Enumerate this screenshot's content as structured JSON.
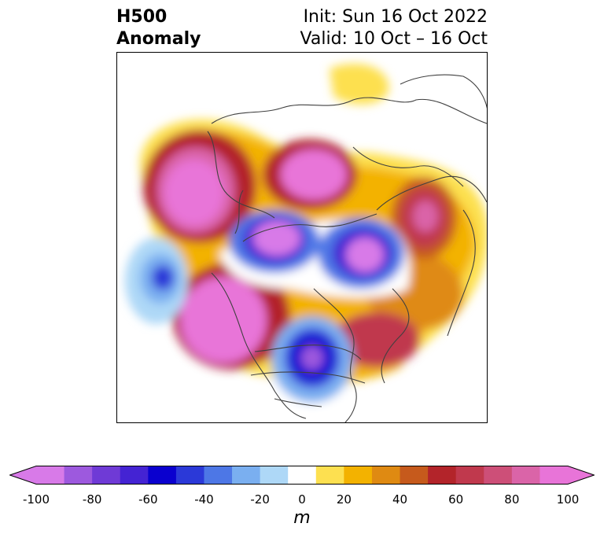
{
  "header": {
    "title_line1": "H500",
    "title_line2": "Anomaly",
    "init": "Init: Sun 16 Oct 2022",
    "valid": "Valid: 10 Oct – 16 Oct"
  },
  "map": {
    "variable": "500 hPa geopotential height anomaly",
    "projection": "north-polar",
    "anomaly_centers": [
      {
        "sign": "positive",
        "region": "north-pacific-aleutians",
        "peak_m": 100
      },
      {
        "sign": "positive",
        "region": "western-north-america",
        "peak_m": 100
      },
      {
        "sign": "positive",
        "region": "siberia",
        "peak_m": 100
      },
      {
        "sign": "positive",
        "region": "western-russia",
        "peak_m": 80
      },
      {
        "sign": "positive",
        "region": "north-atlantic",
        "peak_m": 60
      },
      {
        "sign": "negative",
        "region": "arctic-beaufort",
        "peak_m": -100
      },
      {
        "sign": "negative",
        "region": "kara-sea",
        "peak_m": -100
      },
      {
        "sign": "negative",
        "region": "great-lakes",
        "peak_m": -100
      },
      {
        "sign": "negative",
        "region": "gulf-of-alaska",
        "peak_m": -60
      }
    ]
  },
  "colorbar": {
    "unit": "m",
    "tick_labels": [
      "-100",
      "-80",
      "-60",
      "-40",
      "-20",
      "0",
      "20",
      "40",
      "60",
      "80",
      "100"
    ],
    "levels": [
      -100,
      -90,
      -80,
      -70,
      -60,
      -50,
      -40,
      -30,
      -20,
      -10,
      10,
      20,
      30,
      40,
      50,
      60,
      70,
      80,
      90,
      100
    ],
    "colors": [
      "#d87ae8",
      "#9d59de",
      "#6f3ad6",
      "#4423d3",
      "#0a00cf",
      "#2b39d8",
      "#4d77e6",
      "#7aaff0",
      "#aed8f7",
      "#ffffff",
      "#fde050",
      "#f3b200",
      "#df8a12",
      "#c65a1c",
      "#b3242a",
      "#c0394d",
      "#cd4f78",
      "#da64a8",
      "#e874d8"
    ],
    "under_color": "#d87ae8",
    "over_color": "#e874d8"
  }
}
